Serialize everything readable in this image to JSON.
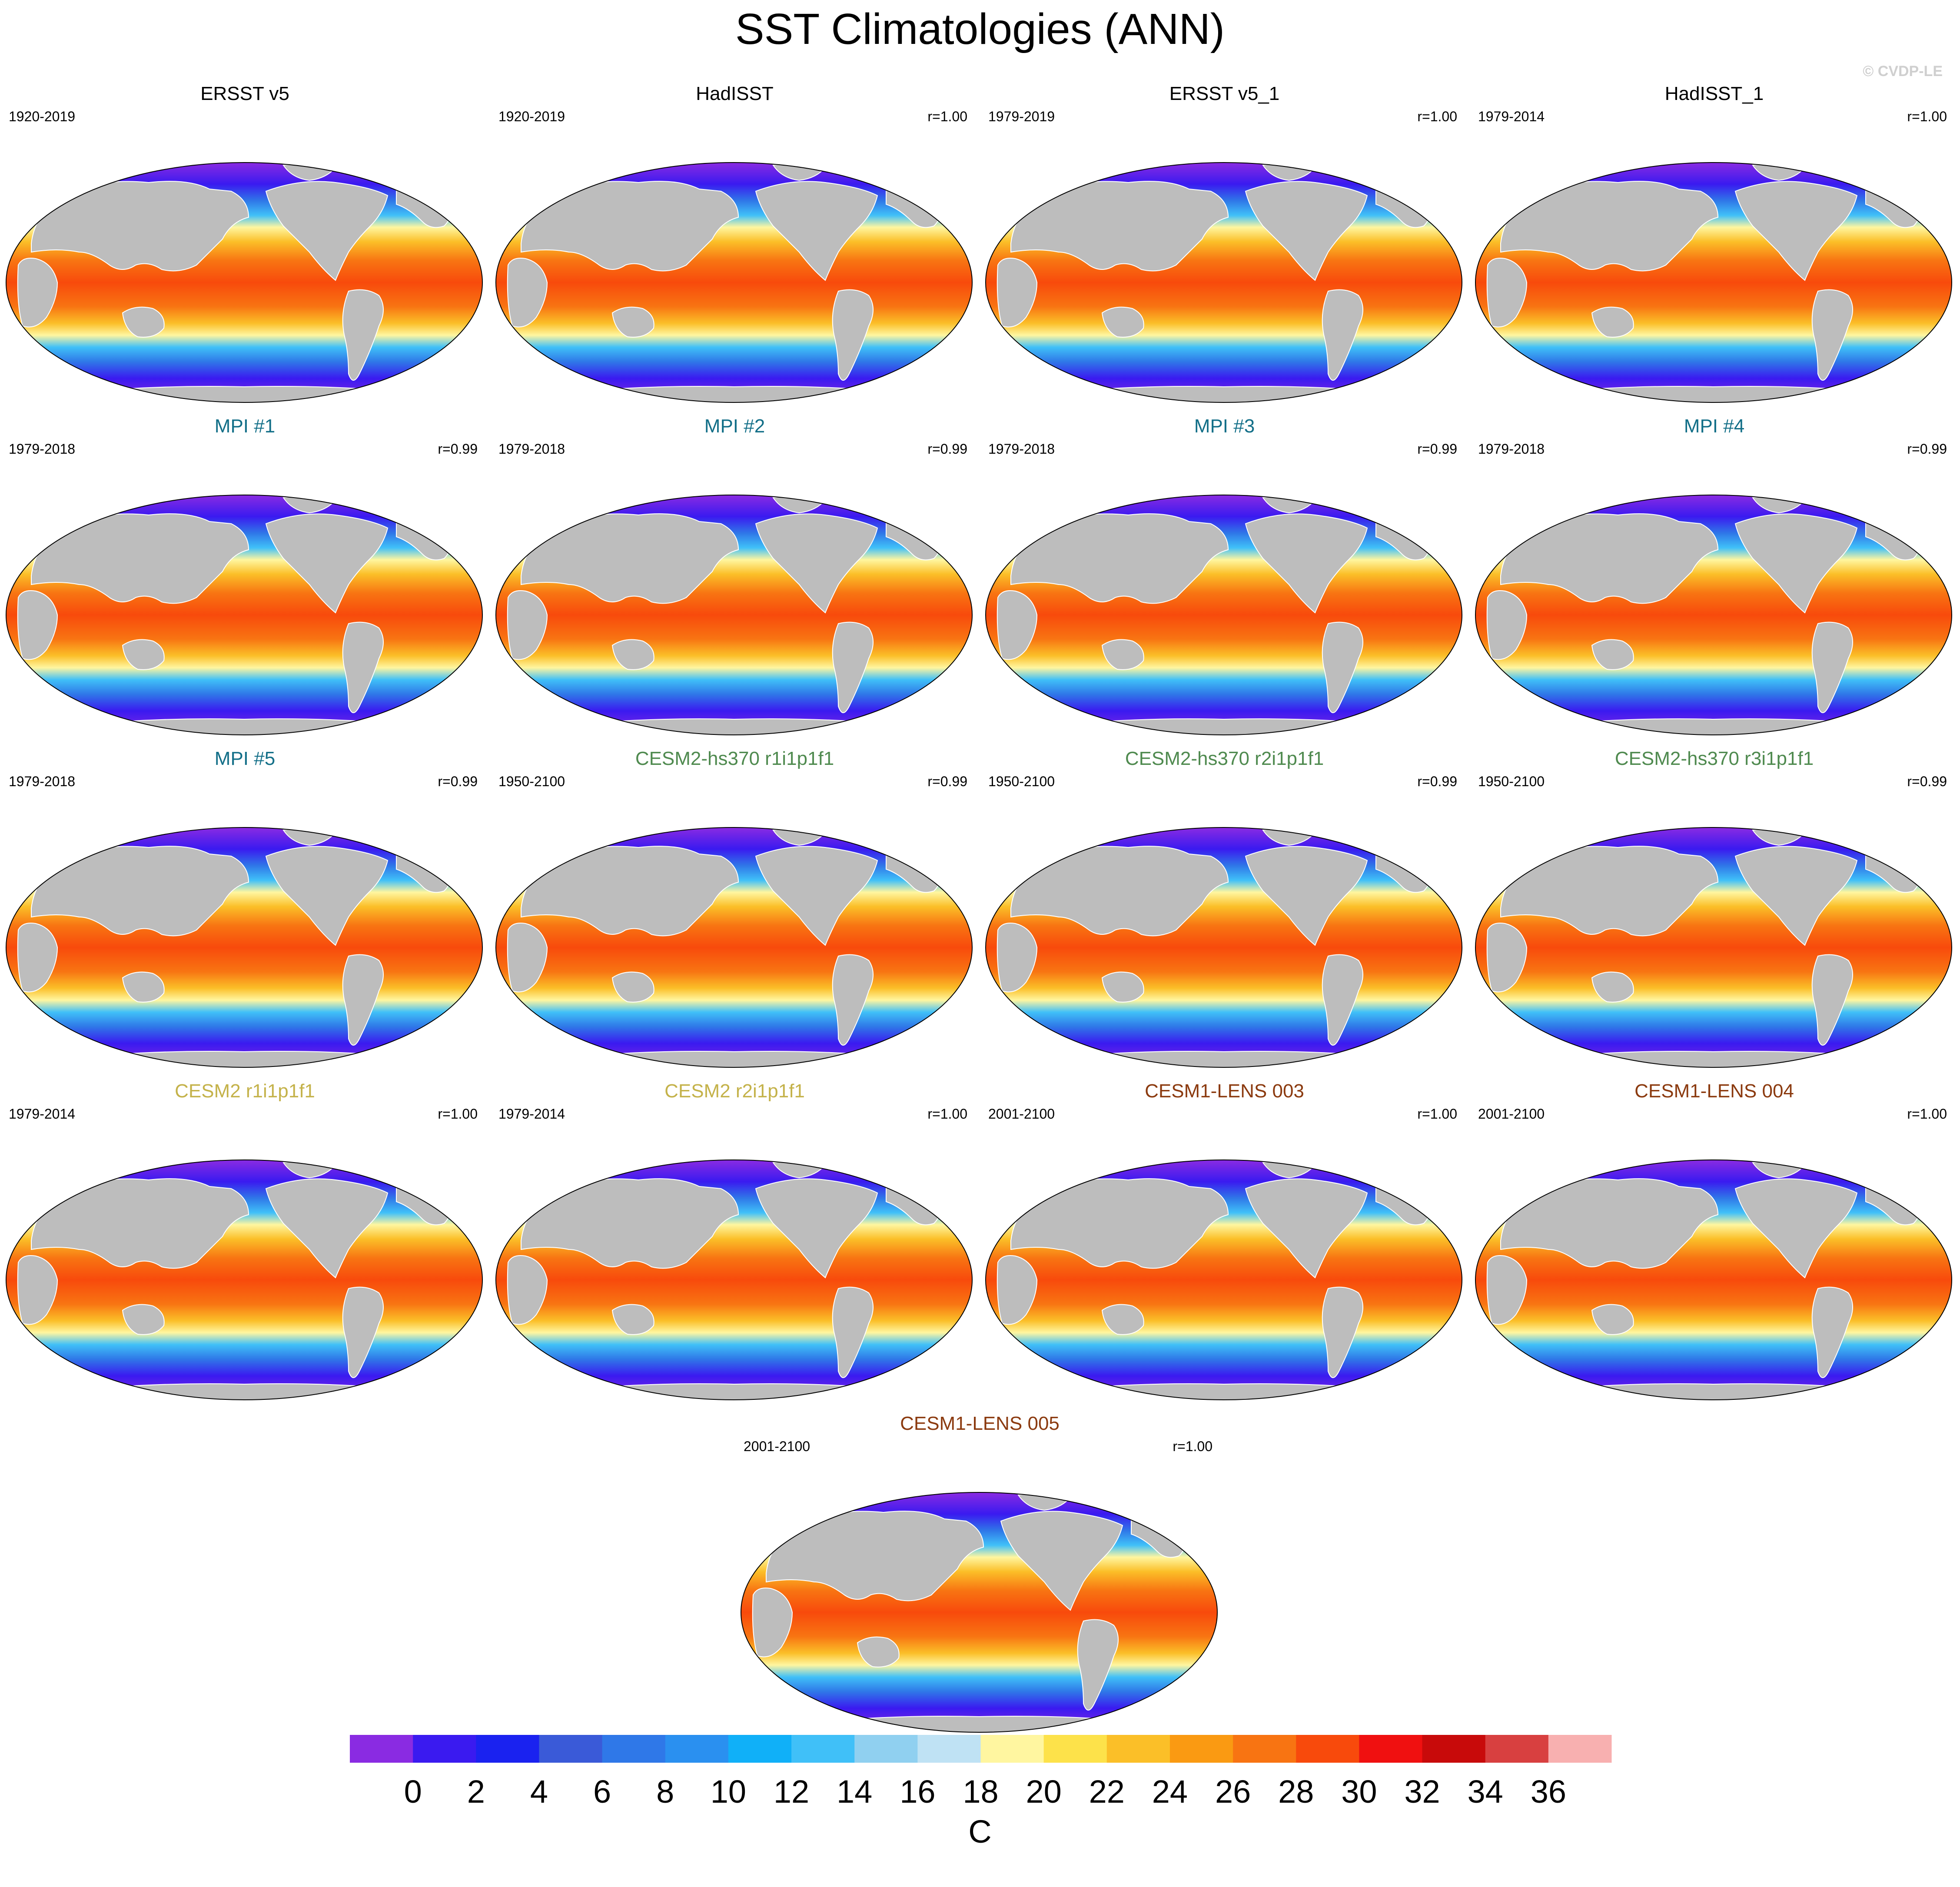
{
  "title": "SST Climatologies (ANN)",
  "credit": "© CVDP-LE",
  "colors": {
    "land": "#bdbdbd",
    "title_observations": "#000000",
    "title_mpi": "#136f88",
    "title_cesm2_hs370": "#4f8a4f",
    "title_cesm2": "#c4b24a",
    "title_cesm1_lens": "#8b3a0f"
  },
  "panels": [
    {
      "title": "ERSST v5",
      "years": "1920-2019",
      "r": "",
      "title_color": "#000000"
    },
    {
      "title": "HadISST",
      "years": "1920-2019",
      "r": "r=1.00",
      "title_color": "#000000"
    },
    {
      "title": "ERSST v5_1",
      "years": "1979-2019",
      "r": "r=1.00",
      "title_color": "#000000"
    },
    {
      "title": "HadISST_1",
      "years": "1979-2014",
      "r": "r=1.00",
      "title_color": "#000000"
    },
    {
      "title": "MPI #1",
      "years": "1979-2018",
      "r": "r=0.99",
      "title_color": "#136f88"
    },
    {
      "title": "MPI #2",
      "years": "1979-2018",
      "r": "r=0.99",
      "title_color": "#136f88"
    },
    {
      "title": "MPI #3",
      "years": "1979-2018",
      "r": "r=0.99",
      "title_color": "#136f88"
    },
    {
      "title": "MPI #4",
      "years": "1979-2018",
      "r": "r=0.99",
      "title_color": "#136f88"
    },
    {
      "title": "MPI #5",
      "years": "1979-2018",
      "r": "r=0.99",
      "title_color": "#136f88"
    },
    {
      "title": "CESM2-hs370 r1i1p1f1",
      "years": "1950-2100",
      "r": "r=0.99",
      "title_color": "#4f8a4f"
    },
    {
      "title": "CESM2-hs370 r2i1p1f1",
      "years": "1950-2100",
      "r": "r=0.99",
      "title_color": "#4f8a4f"
    },
    {
      "title": "CESM2-hs370 r3i1p1f1",
      "years": "1950-2100",
      "r": "r=0.99",
      "title_color": "#4f8a4f"
    },
    {
      "title": "CESM2 r1i1p1f1",
      "years": "1979-2014",
      "r": "r=1.00",
      "title_color": "#c4b24a"
    },
    {
      "title": "CESM2 r2i1p1f1",
      "years": "1979-2014",
      "r": "r=1.00",
      "title_color": "#c4b24a"
    },
    {
      "title": "CESM1-LENS 003",
      "years": "2001-2100",
      "r": "r=1.00",
      "title_color": "#8b3a0f"
    },
    {
      "title": "CESM1-LENS 004",
      "years": "2001-2100",
      "r": "r=1.00",
      "title_color": "#8b3a0f"
    },
    {
      "title": "CESM1-LENS 005",
      "years": "2001-2100",
      "r": "r=1.00",
      "title_color": "#8b3a0f"
    }
  ],
  "colorbar": {
    "unit": "C",
    "labels": [
      "0",
      "2",
      "4",
      "6",
      "8",
      "10",
      "12",
      "14",
      "16",
      "18",
      "20",
      "22",
      "24",
      "26",
      "28",
      "30",
      "32",
      "34",
      "36"
    ],
    "colors": [
      "#8a2be2",
      "#3a1af0",
      "#1a22f0",
      "#3a5ad8",
      "#2f78e8",
      "#2a90f0",
      "#10b0f8",
      "#40c0f8",
      "#90d0f0",
      "#bfe2f4",
      "#fff6a0",
      "#fde24a",
      "#fbbf28",
      "#fa9a12",
      "#f87412",
      "#f84a0c",
      "#f01010",
      "#c80a0a",
      "#d84040",
      "#f8b0b0"
    ]
  }
}
